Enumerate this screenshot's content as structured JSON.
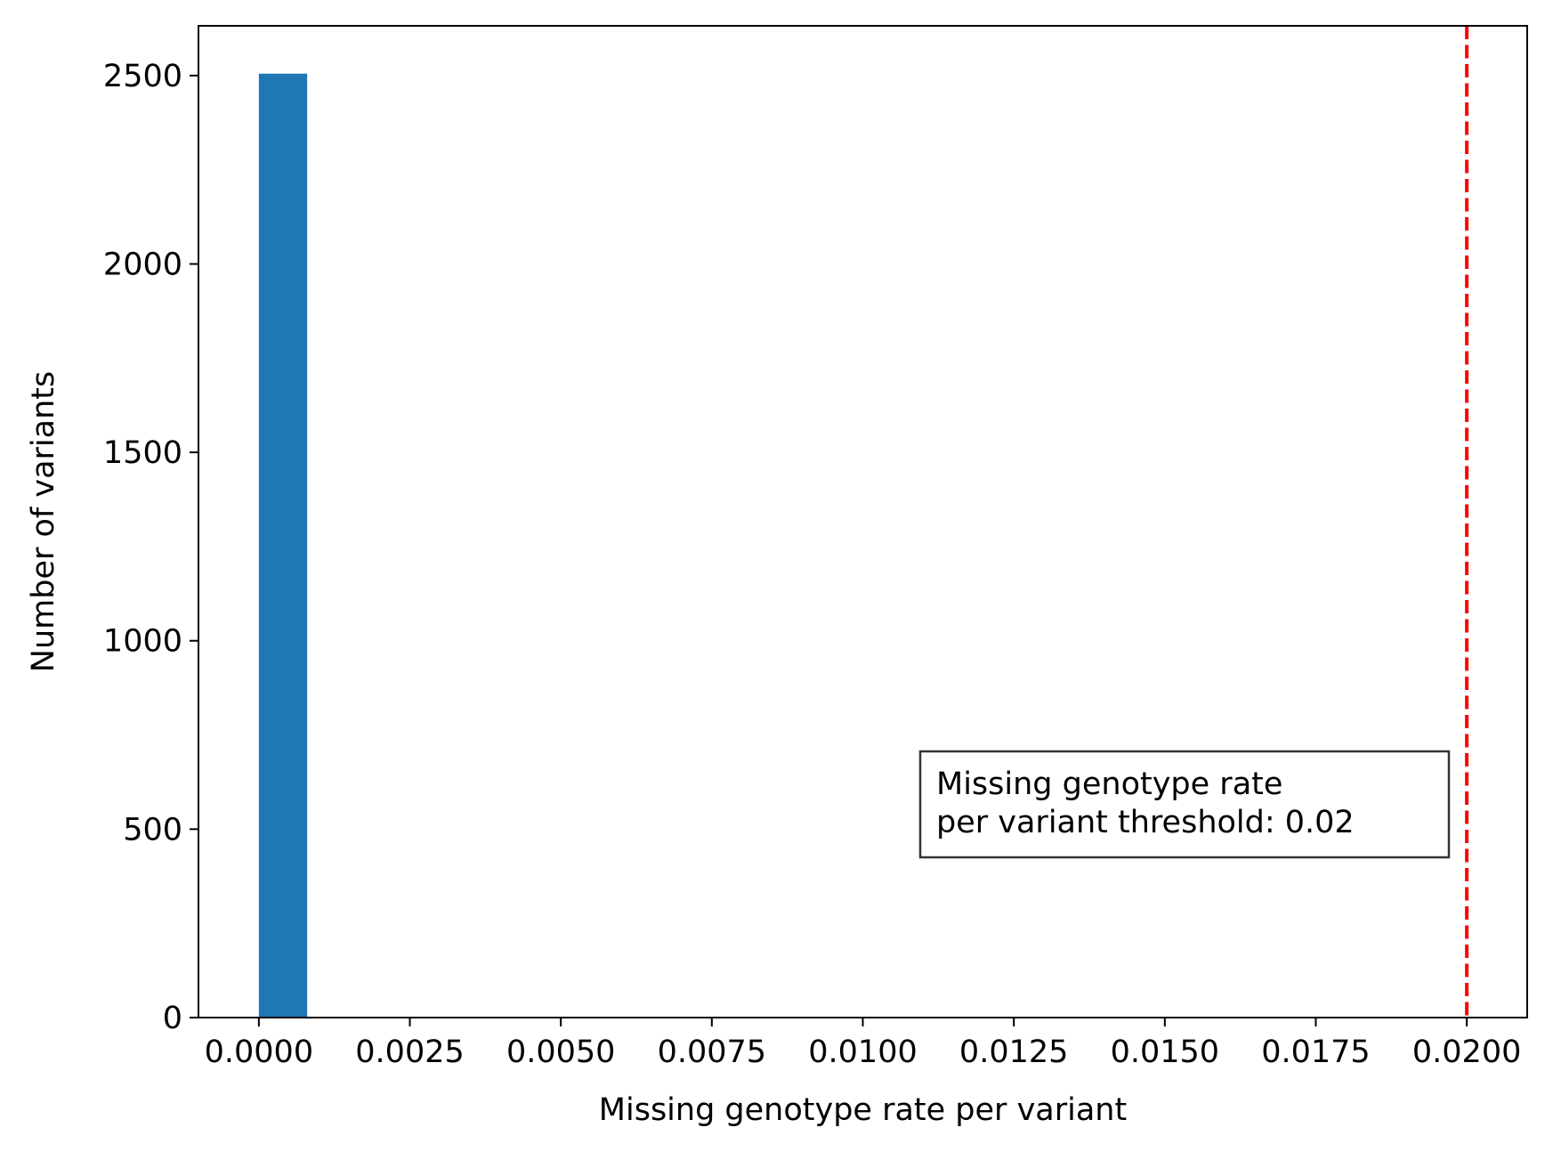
{
  "chart_data": {
    "type": "bar",
    "title": "",
    "xlabel": "Missing genotype rate per variant",
    "ylabel": "Number of variants",
    "xlim": [
      -0.001,
      0.021
    ],
    "ylim": [
      0,
      2632
    ],
    "x_ticks": [
      0.0,
      0.0025,
      0.005,
      0.0075,
      0.01,
      0.0125,
      0.015,
      0.0175,
      0.02
    ],
    "x_tick_labels": [
      "0.0000",
      "0.0025",
      "0.0050",
      "0.0075",
      "0.0100",
      "0.0125",
      "0.0150",
      "0.0175",
      "0.0200"
    ],
    "y_ticks": [
      0,
      500,
      1000,
      1500,
      2000,
      2500
    ],
    "y_tick_labels": [
      "0",
      "500",
      "1000",
      "1500",
      "2000",
      "2500"
    ],
    "bars": [
      {
        "x_start": 0.0,
        "x_end": 0.0008,
        "value": 2505
      }
    ],
    "threshold": {
      "value": 0.02,
      "line_style": "dashed",
      "color": "#ff0000",
      "annotation_lines": [
        "Missing genotype rate",
        "per variant threshold: 0.02"
      ]
    },
    "bar_color": "#1f77b4",
    "grid": false,
    "legend": "none"
  }
}
